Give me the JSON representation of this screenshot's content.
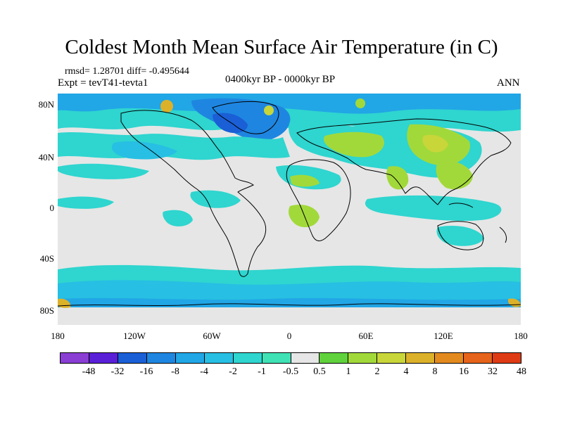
{
  "title": "Coldest Month Mean Surface Air Temperature (in C)",
  "stats": "rmsd= 1.28701 diff= -0.495644",
  "expt": "Expt = tevT41-tevta1",
  "period": "0400kyr BP - 0000kyr BP",
  "season": "ANN",
  "y_axis_labels": [
    "80N",
    "40N",
    "0",
    "40S",
    "80S"
  ],
  "x_axis_labels": [
    "180",
    "120W",
    "60W",
    "0",
    "60E",
    "120E",
    "180"
  ],
  "colorbar": {
    "labels": [
      "-48",
      "-32",
      "-16",
      "-8",
      "-4",
      "-2",
      "-1",
      "-0.5",
      "0.5",
      "1",
      "2",
      "4",
      "8",
      "16",
      "32",
      "48"
    ],
    "colors": [
      "#8a3ed4",
      "#5a20d8",
      "#1a5fd6",
      "#1e86e0",
      "#21a6e6",
      "#27bfe3",
      "#2fd5cf",
      "#3fe2b4",
      "#e6e6e6",
      "#5fd23c",
      "#a2d93a",
      "#c8d63a",
      "#dcb12a",
      "#e38a1f",
      "#e5631a",
      "#de3a14"
    ]
  },
  "map_colors": {
    "background": "#e6e6e6",
    "cyan": "#2fd5cf",
    "light_blue": "#27bfe3",
    "blue": "#21a6e6",
    "deep_blue": "#1a5fd6",
    "green": "#a2d93a",
    "light_green": "#c8d63a",
    "orange": "#dcb12a",
    "coastline": "#000000"
  }
}
